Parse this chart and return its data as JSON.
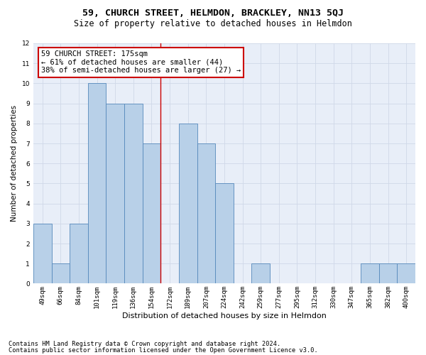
{
  "title": "59, CHURCH STREET, HELMDON, BRACKLEY, NN13 5QJ",
  "subtitle": "Size of property relative to detached houses in Helmdon",
  "xlabel": "Distribution of detached houses by size in Helmdon",
  "ylabel": "Number of detached properties",
  "categories": [
    "49sqm",
    "66sqm",
    "84sqm",
    "101sqm",
    "119sqm",
    "136sqm",
    "154sqm",
    "172sqm",
    "189sqm",
    "207sqm",
    "224sqm",
    "242sqm",
    "259sqm",
    "277sqm",
    "295sqm",
    "312sqm",
    "330sqm",
    "347sqm",
    "365sqm",
    "382sqm",
    "400sqm"
  ],
  "values": [
    3,
    1,
    3,
    10,
    9,
    9,
    7,
    0,
    8,
    7,
    5,
    0,
    1,
    0,
    0,
    0,
    0,
    0,
    1,
    1,
    1
  ],
  "bar_color": "#b8d0e8",
  "bar_edge_color": "#5588bb",
  "annotation_line1": "59 CHURCH STREET: 175sqm",
  "annotation_line2": "← 61% of detached houses are smaller (44)",
  "annotation_line3": "38% of semi-detached houses are larger (27) →",
  "annotation_box_color": "#ffffff",
  "annotation_box_edge": "#cc0000",
  "ref_line_x": 6.5,
  "ref_line_color": "#cc0000",
  "ylim": [
    0,
    12
  ],
  "yticks": [
    0,
    1,
    2,
    3,
    4,
    5,
    6,
    7,
    8,
    9,
    10,
    11,
    12
  ],
  "grid_color": "#d0d8e8",
  "bg_color": "#e8eef8",
  "footer1": "Contains HM Land Registry data © Crown copyright and database right 2024.",
  "footer2": "Contains public sector information licensed under the Open Government Licence v3.0.",
  "title_fontsize": 9.5,
  "subtitle_fontsize": 8.5,
  "xlabel_fontsize": 8,
  "ylabel_fontsize": 7.5,
  "tick_fontsize": 6.5,
  "annotation_fontsize": 7.5,
  "footer_fontsize": 6.2
}
